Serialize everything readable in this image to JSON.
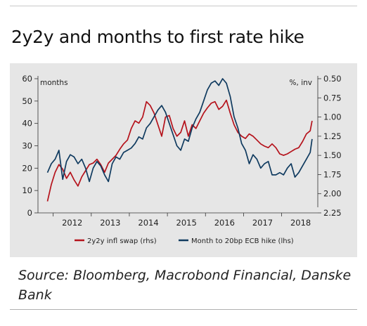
{
  "header": {
    "title": "2y2y and months to first rate hike"
  },
  "footer": {
    "source": "Source: Bloomberg, Macrobond Financial, Danske Bank"
  },
  "chart_data": {
    "type": "line",
    "title": "2y2y and months to first rate hike",
    "left_axis": {
      "unit": "months",
      "ylim": [
        0,
        60
      ],
      "ticks": [
        "0",
        "10",
        "20",
        "30",
        "40",
        "50",
        "60"
      ]
    },
    "right_axis": {
      "unit": "%, inv",
      "ylim": [
        2.25,
        0.5
      ],
      "inverted": true,
      "ticks": [
        "0.50",
        "0.75",
        "1.00",
        "1.25",
        "1.50",
        "1.75",
        "2.00",
        "2.25"
      ]
    },
    "x_ticks": [
      "2012",
      "2013",
      "2014",
      "2015",
      "2016",
      "2017",
      "2018"
    ],
    "grid": false,
    "legend_position": "bottom",
    "series": [
      {
        "name": "2y2y infl swap (rhs)",
        "axis": "right",
        "color": "#b5121b",
        "x": [
          2011.85,
          2011.95,
          2012.05,
          2012.15,
          2012.25,
          2012.35,
          2012.45,
          2012.55,
          2012.65,
          2012.75,
          2012.85,
          2012.95,
          2013.05,
          2013.15,
          2013.25,
          2013.35,
          2013.45,
          2013.55,
          2013.65,
          2013.75,
          2013.85,
          2013.95,
          2014.05,
          2014.15,
          2014.25,
          2014.35,
          2014.45,
          2014.55,
          2014.65,
          2014.75,
          2014.85,
          2014.95,
          2015.05,
          2015.15,
          2015.25,
          2015.35,
          2015.45,
          2015.55,
          2015.65,
          2015.75,
          2015.85,
          2015.95,
          2016.05,
          2016.15,
          2016.25,
          2016.35,
          2016.45,
          2016.55,
          2016.65,
          2016.75,
          2016.85,
          2016.95,
          2017.05,
          2017.15,
          2017.25,
          2017.35,
          2017.45,
          2017.55,
          2017.65,
          2017.75,
          2017.85,
          2017.95,
          2018.05,
          2018.15,
          2018.25,
          2018.35,
          2018.45,
          2018.55,
          2018.65,
          2018.75,
          2018.8
        ],
        "values": [
          2.1,
          1.88,
          1.72,
          1.62,
          1.68,
          1.8,
          1.72,
          1.82,
          1.9,
          1.78,
          1.7,
          1.62,
          1.6,
          1.55,
          1.62,
          1.72,
          1.6,
          1.55,
          1.5,
          1.42,
          1.35,
          1.3,
          1.15,
          1.05,
          1.08,
          1.0,
          0.8,
          0.85,
          0.95,
          1.1,
          1.25,
          1.0,
          0.98,
          1.15,
          1.25,
          1.2,
          1.05,
          1.25,
          1.1,
          1.15,
          1.05,
          0.95,
          0.88,
          0.82,
          0.8,
          0.9,
          0.86,
          0.78,
          0.95,
          1.1,
          1.2,
          1.25,
          1.28,
          1.22,
          1.25,
          1.3,
          1.35,
          1.38,
          1.4,
          1.35,
          1.4,
          1.48,
          1.5,
          1.48,
          1.45,
          1.42,
          1.4,
          1.32,
          1.22,
          1.18,
          1.05
        ]
      },
      {
        "name": "Month to 20bp ECB hike (lhs)",
        "axis": "left",
        "color": "#0f3a5f",
        "x": [
          2011.85,
          2011.95,
          2012.05,
          2012.15,
          2012.25,
          2012.35,
          2012.45,
          2012.55,
          2012.65,
          2012.75,
          2012.85,
          2012.95,
          2013.05,
          2013.15,
          2013.25,
          2013.35,
          2013.45,
          2013.55,
          2013.65,
          2013.75,
          2013.85,
          2013.95,
          2014.05,
          2014.15,
          2014.25,
          2014.35,
          2014.45,
          2014.55,
          2014.65,
          2014.75,
          2014.85,
          2014.95,
          2015.05,
          2015.15,
          2015.25,
          2015.35,
          2015.45,
          2015.55,
          2015.65,
          2015.75,
          2015.85,
          2015.95,
          2016.05,
          2016.15,
          2016.25,
          2016.35,
          2016.45,
          2016.55,
          2016.65,
          2016.75,
          2016.85,
          2016.95,
          2017.05,
          2017.15,
          2017.25,
          2017.35,
          2017.45,
          2017.55,
          2017.65,
          2017.75,
          2017.85,
          2017.95,
          2018.05,
          2018.15,
          2018.25,
          2018.35,
          2018.45,
          2018.55,
          2018.65,
          2018.75,
          2018.8
        ],
        "values": [
          18,
          22,
          24,
          28,
          15,
          23,
          26,
          25,
          22,
          24,
          20,
          14,
          20,
          23,
          21,
          17,
          14,
          22,
          25,
          24,
          27,
          28,
          29,
          31,
          34,
          33,
          38,
          40,
          43,
          46,
          48,
          45,
          40,
          35,
          30,
          28,
          33,
          32,
          38,
          42,
          45,
          50,
          55,
          58,
          59,
          57,
          60,
          58,
          52,
          43,
          38,
          31,
          28,
          22,
          26,
          24,
          20,
          22,
          23,
          17,
          17,
          18,
          17,
          20,
          22,
          16,
          18,
          21,
          24,
          27,
          33
        ]
      }
    ]
  }
}
